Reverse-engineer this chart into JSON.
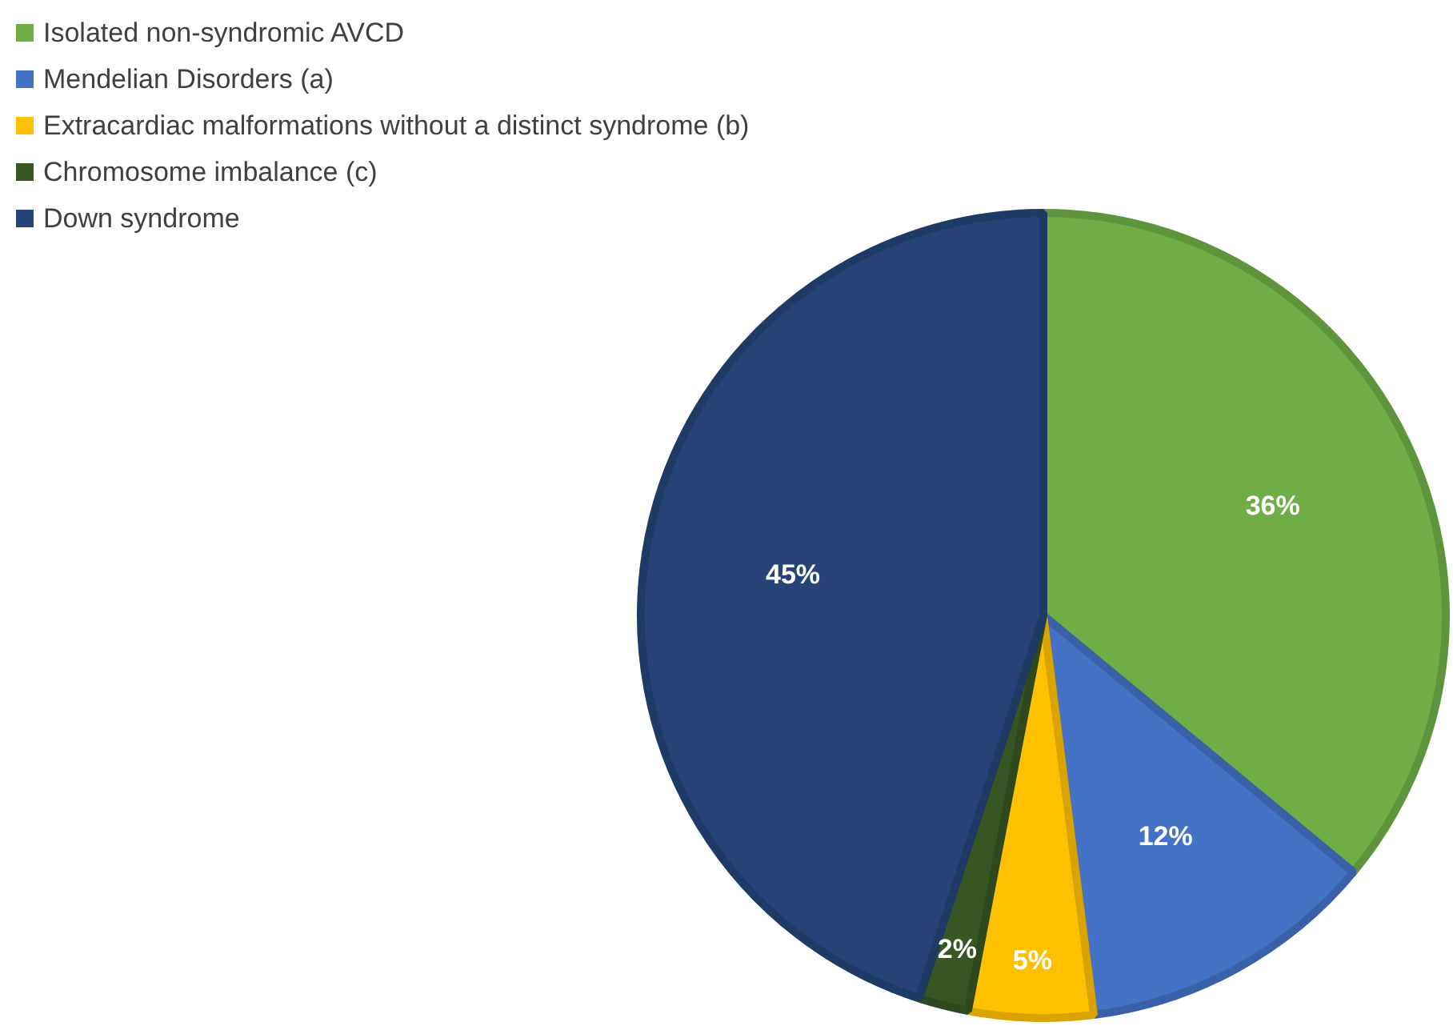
{
  "chart_data": {
    "type": "pie",
    "categories": [
      "Isolated non-syndromic AVCD",
      "Mendelian Disorders (a)",
      "Extracardiac malformations without a distinct syndrome (b)",
      "Chromosome imbalance (c)",
      "Down syndrome"
    ],
    "values": [
      36,
      12,
      5,
      2,
      45
    ],
    "colors": [
      "#70ad47",
      "#4472c4",
      "#ffc000",
      "#375623",
      "#264478"
    ],
    "value_labels": [
      "36%",
      "12%",
      "5%",
      "2%",
      "45%"
    ],
    "legend": "top left"
  }
}
